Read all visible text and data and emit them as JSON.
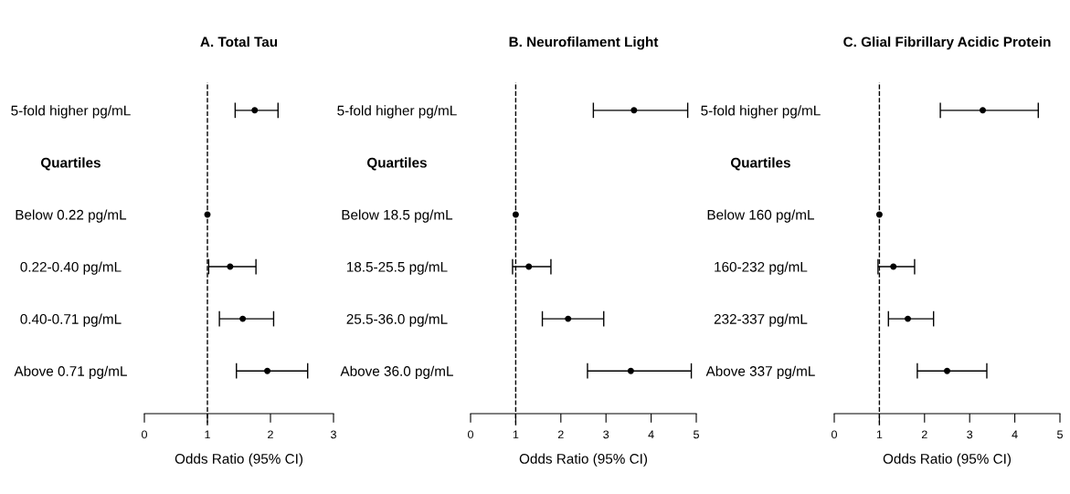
{
  "chart_data": [
    {
      "type": "scatter",
      "orientation": "horizontal",
      "title": "A. Total Tau",
      "xlabel": "Odds Ratio (95% CI)",
      "marker": "circle",
      "grid": false,
      "legend": false,
      "categories": [
        "5-fold higher pg/mL",
        "Quartiles",
        "Below 0.22 pg/mL",
        "0.22-0.40 pg/mL",
        "0.40-0.71 pg/mL",
        "Above 0.71 pg/mL"
      ],
      "series": [
        {
          "color": "#000000",
          "values": [
            1.75,
            null,
            1,
            1.36,
            1.56,
            1.95
          ],
          "errors": [
            [
              1.44,
              2.12
            ],
            null,
            null,
            [
              1.02,
              1.77
            ],
            [
              1.19,
              2.05
            ],
            [
              1.46,
              2.59
            ]
          ]
        }
      ],
      "xlim": [
        0,
        3
      ],
      "xticks": [
        0,
        1,
        2,
        3
      ],
      "ref_lines": [
        {
          "axis": "x",
          "value": 1,
          "line_style": "dashed",
          "color": "#000000"
        }
      ]
    },
    {
      "type": "scatter",
      "orientation": "horizontal",
      "title": "B. Neurofilament Light",
      "xlabel": "Odds Ratio (95% CI)",
      "marker": "circle",
      "grid": false,
      "legend": false,
      "categories": [
        "5-fold higher pg/mL",
        "Quartiles",
        "Below 18.5 pg/mL",
        "18.5-25.5 pg/mL",
        "25.5-36.0 pg/mL",
        "Above 36.0 pg/mL"
      ],
      "series": [
        {
          "color": "#000000",
          "values": [
            3.62,
            null,
            1,
            1.29,
            2.16,
            3.55
          ],
          "errors": [
            [
              2.72,
              4.81
            ],
            null,
            null,
            [
              0.93,
              1.78
            ],
            [
              1.59,
              2.95
            ],
            [
              2.59,
              4.89
            ]
          ]
        }
      ],
      "xlim": [
        0,
        5
      ],
      "xticks": [
        0,
        1,
        2,
        3,
        4,
        5
      ],
      "ref_lines": [
        {
          "axis": "x",
          "value": 1,
          "line_style": "dashed",
          "color": "#000000"
        }
      ]
    },
    {
      "type": "scatter",
      "orientation": "horizontal",
      "title": "C. Glial Fibrillary Acidic Protein",
      "xlabel": "Odds Ratio (95% CI)",
      "marker": "circle",
      "grid": false,
      "legend": false,
      "categories": [
        "5-fold higher pg/mL",
        "Quartiles",
        "Below 160 pg/mL",
        "160-232 pg/mL",
        "232-337 pg/mL",
        "Above 337 pg/mL"
      ],
      "series": [
        {
          "color": "#000000",
          "values": [
            3.29,
            null,
            1,
            1.31,
            1.63,
            2.5
          ],
          "errors": [
            [
              2.35,
              4.52
            ],
            null,
            null,
            [
              0.97,
              1.78
            ],
            [
              1.2,
              2.2
            ],
            [
              1.84,
              3.38
            ]
          ]
        }
      ],
      "xlim": [
        0,
        5
      ],
      "xticks": [
        0,
        1,
        2,
        3,
        4,
        5
      ],
      "ref_lines": [
        {
          "axis": "x",
          "value": 1,
          "line_style": "dashed",
          "color": "#000000"
        }
      ]
    }
  ]
}
